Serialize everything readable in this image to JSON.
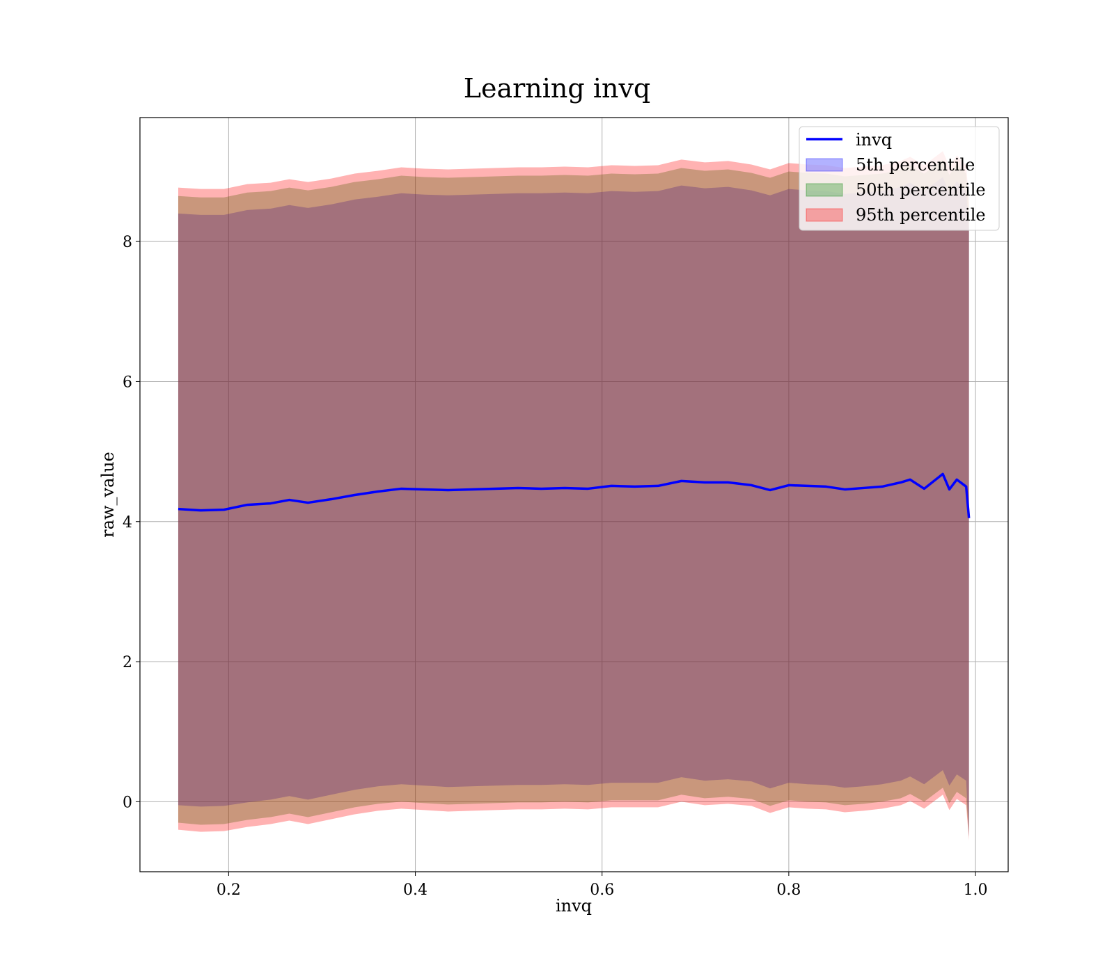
{
  "chart_data": {
    "type": "area",
    "title": "Learning invq",
    "xlabel": "invq",
    "ylabel": "raw_value",
    "xlim": [
      0.105,
      1.035
    ],
    "ylim": [
      -1.0,
      9.77
    ],
    "xticks": [
      "0.2",
      "0.4",
      "0.6",
      "0.8",
      "1.0"
    ],
    "yticks": [
      "0",
      "2",
      "4",
      "6",
      "8"
    ],
    "grid": true,
    "legend_position": "top-right",
    "legend": [
      "invq",
      "5th percentile",
      "50th percentile",
      "95th percentile"
    ],
    "colors": {
      "line": "#0000ff",
      "p5": "#0000ff",
      "p50": "#008000",
      "p95": "#ff0000"
    },
    "x": [
      0.146,
      0.17,
      0.195,
      0.22,
      0.245,
      0.265,
      0.285,
      0.31,
      0.335,
      0.36,
      0.385,
      0.41,
      0.435,
      0.46,
      0.485,
      0.51,
      0.535,
      0.56,
      0.585,
      0.61,
      0.635,
      0.66,
      0.685,
      0.71,
      0.735,
      0.76,
      0.78,
      0.8,
      0.82,
      0.84,
      0.86,
      0.88,
      0.9,
      0.92,
      0.93,
      0.945,
      0.965,
      0.972,
      0.98,
      0.99,
      0.993
    ],
    "series": [
      {
        "name": "invq",
        "values": [
          4.18,
          4.16,
          4.17,
          4.24,
          4.26,
          4.31,
          4.27,
          4.32,
          4.38,
          4.43,
          4.47,
          4.46,
          4.45,
          4.46,
          4.47,
          4.48,
          4.47,
          4.48,
          4.47,
          4.51,
          4.5,
          4.51,
          4.58,
          4.56,
          4.56,
          4.52,
          4.45,
          4.52,
          4.51,
          4.5,
          4.46,
          4.48,
          4.5,
          4.56,
          4.6,
          4.47,
          4.68,
          4.46,
          4.6,
          4.5,
          4.05
        ]
      },
      {
        "name": "5th percentile",
        "lower": [
          -0.05,
          -0.07,
          -0.06,
          -0.01,
          0.03,
          0.08,
          0.03,
          0.1,
          0.17,
          0.22,
          0.25,
          0.23,
          0.21,
          0.22,
          0.23,
          0.24,
          0.24,
          0.25,
          0.24,
          0.27,
          0.27,
          0.27,
          0.35,
          0.3,
          0.32,
          0.29,
          0.19,
          0.27,
          0.25,
          0.24,
          0.2,
          0.22,
          0.25,
          0.3,
          0.36,
          0.25,
          0.45,
          0.23,
          0.39,
          0.3,
          -0.5
        ],
        "upper": [
          8.4,
          8.38,
          8.38,
          8.45,
          8.47,
          8.52,
          8.48,
          8.53,
          8.6,
          8.64,
          8.69,
          8.67,
          8.66,
          8.67,
          8.68,
          8.69,
          8.69,
          8.7,
          8.69,
          8.72,
          8.71,
          8.72,
          8.8,
          8.76,
          8.78,
          8.73,
          8.66,
          8.75,
          8.73,
          8.72,
          8.68,
          8.7,
          8.72,
          8.78,
          8.84,
          8.72,
          8.92,
          8.7,
          8.86,
          8.72,
          8.2
        ]
      },
      {
        "name": "50th percentile",
        "lower": [
          -0.3,
          -0.33,
          -0.32,
          -0.26,
          -0.22,
          -0.17,
          -0.22,
          -0.15,
          -0.08,
          -0.03,
          0.0,
          -0.02,
          -0.04,
          -0.03,
          -0.02,
          -0.01,
          -0.01,
          0.0,
          -0.01,
          0.02,
          0.02,
          0.02,
          0.1,
          0.05,
          0.07,
          0.04,
          -0.06,
          0.02,
          0.0,
          -0.01,
          -0.05,
          -0.03,
          0.0,
          0.05,
          0.11,
          0.0,
          0.2,
          -0.02,
          0.14,
          0.05,
          -0.5
        ],
        "upper": [
          8.65,
          8.63,
          8.63,
          8.7,
          8.72,
          8.77,
          8.73,
          8.78,
          8.85,
          8.89,
          8.94,
          8.92,
          8.91,
          8.92,
          8.93,
          8.94,
          8.94,
          8.95,
          8.94,
          8.97,
          8.96,
          8.97,
          9.05,
          9.01,
          9.03,
          8.98,
          8.91,
          9.0,
          8.98,
          8.97,
          8.93,
          8.95,
          8.97,
          9.03,
          9.09,
          8.97,
          9.17,
          8.95,
          9.11,
          8.97,
          8.45
        ]
      },
      {
        "name": "95th percentile",
        "lower": [
          -0.4,
          -0.43,
          -0.42,
          -0.36,
          -0.32,
          -0.27,
          -0.32,
          -0.25,
          -0.18,
          -0.13,
          -0.1,
          -0.12,
          -0.14,
          -0.13,
          -0.12,
          -0.11,
          -0.11,
          -0.1,
          -0.11,
          -0.08,
          -0.08,
          -0.08,
          0.0,
          -0.05,
          -0.03,
          -0.06,
          -0.16,
          -0.08,
          -0.1,
          -0.11,
          -0.15,
          -0.13,
          -0.1,
          -0.05,
          0.01,
          -0.1,
          0.1,
          -0.12,
          0.04,
          -0.05,
          -0.55
        ],
        "upper": [
          8.77,
          8.75,
          8.75,
          8.82,
          8.84,
          8.89,
          8.85,
          8.9,
          8.97,
          9.01,
          9.06,
          9.04,
          9.03,
          9.04,
          9.05,
          9.06,
          9.06,
          9.07,
          9.06,
          9.09,
          9.08,
          9.09,
          9.17,
          9.13,
          9.15,
          9.1,
          9.03,
          9.12,
          9.1,
          9.09,
          9.05,
          9.07,
          9.09,
          9.15,
          9.21,
          9.09,
          9.29,
          9.07,
          9.23,
          9.09,
          8.57
        ]
      }
    ]
  }
}
